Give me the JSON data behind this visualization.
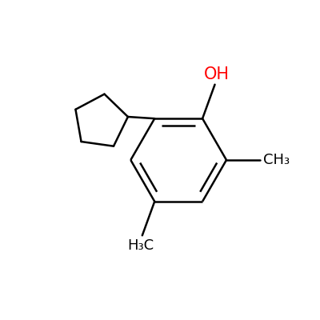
{
  "background_color": "#ffffff",
  "bond_color": "#000000",
  "oh_color": "#ff0000",
  "ch3_color": "#000000",
  "line_width": 1.8,
  "figsize": [
    4.0,
    4.0
  ],
  "dpi": 100,
  "oh_label": "OH",
  "ch3_label_right": "CH₃",
  "ch3_label_bottom": "H₃C",
  "font_size_oh": 15,
  "font_size_ch3": 13
}
